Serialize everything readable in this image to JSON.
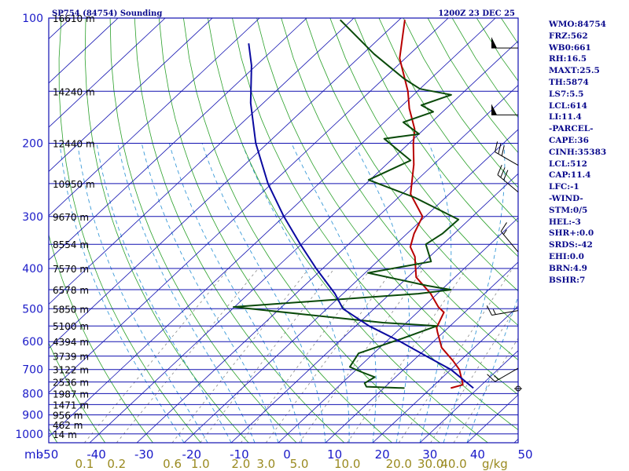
{
  "title": "SP754 (84754) Sounding",
  "time": "1200Z 23 DEC 25",
  "colors": {
    "frame": "#1010b0",
    "isobar": "#1010b0",
    "isotherm": "#1010b0",
    "dry_adiabat": "#2aa02a",
    "moist_adiabat": "#3a9ad8",
    "mixing_ratio": "#888888",
    "temperature": "#b80000",
    "dewpoint": "#0a4a0a",
    "parcel": "#0a0aa0",
    "wind": "#000000"
  },
  "chart_data": {
    "type": "line",
    "subtype": "skew-T log-P sounding",
    "y_scale": "log",
    "ylim": [
      1000,
      100
    ],
    "xlim": [
      -50,
      50
    ],
    "pressure_labels": [
      100,
      200,
      300,
      400,
      500,
      600,
      700,
      800,
      900,
      1000
    ],
    "pressure_unit": "mb",
    "temperature_labels": [
      -50,
      -40,
      -30,
      -20,
      -10,
      0,
      10,
      20,
      30,
      40,
      50
    ],
    "mixing_ratio_labels": [
      "0.1",
      "0.2",
      "0.6",
      "1.0",
      "2.0",
      "3.0",
      "5.0",
      "10.0",
      "20.0",
      "30.0",
      "40.0"
    ],
    "mixing_ratio_unit": "g/kg",
    "heights": [
      {
        "p": 100,
        "label": "16610 m"
      },
      {
        "p": 150,
        "label": "14240 m"
      },
      {
        "p": 200,
        "label": "12440 m"
      },
      {
        "p": 250,
        "label": "10950 m"
      },
      {
        "p": 300,
        "label": "9670 m"
      },
      {
        "p": 350,
        "label": "8554 m"
      },
      {
        "p": 400,
        "label": "7570 m"
      },
      {
        "p": 450,
        "label": "6578 m"
      },
      {
        "p": 500,
        "label": "5850 m"
      },
      {
        "p": 550,
        "label": "5100 m"
      },
      {
        "p": 600,
        "label": "4394 m"
      },
      {
        "p": 650,
        "label": "3739 m"
      },
      {
        "p": 700,
        "label": "3122 m"
      },
      {
        "p": 750,
        "label": "2536 m"
      },
      {
        "p": 800,
        "label": "1987 m"
      },
      {
        "p": 850,
        "label": "1471 m"
      },
      {
        "p": 900,
        "label": "956 m"
      },
      {
        "p": 950,
        "label": "462 m"
      },
      {
        "p": 1000,
        "label": "14 m"
      }
    ],
    "series": [
      {
        "name": "Temperature",
        "points": [
          [
            776,
            24.2
          ],
          [
            762,
            26.0
          ],
          [
            752,
            25.4
          ],
          [
            700,
            21.8
          ],
          [
            668,
            18.6
          ],
          [
            620,
            13.1
          ],
          [
            570,
            8.8
          ],
          [
            555,
            7.5
          ],
          [
            510,
            5.6
          ],
          [
            495,
            3.2
          ],
          [
            460,
            -1.4
          ],
          [
            420,
            -8.2
          ],
          [
            375,
            -13.1
          ],
          [
            355,
            -16.3
          ],
          [
            330,
            -18.5
          ],
          [
            300,
            -20.6
          ],
          [
            265,
            -28.2
          ],
          [
            225,
            -34.2
          ],
          [
            200,
            -39.1
          ],
          [
            185,
            -42.0
          ],
          [
            165,
            -47.8
          ],
          [
            150,
            -52.0
          ],
          [
            125,
            -61.2
          ],
          [
            101,
            -68.8
          ]
        ]
      },
      {
        "name": "Dewpoint",
        "points": [
          [
            776,
            14.4
          ],
          [
            770,
            6.0
          ],
          [
            755,
            4.8
          ],
          [
            730,
            5.6
          ],
          [
            710,
            1.7
          ],
          [
            700,
            -0.2
          ],
          [
            690,
            -2.0
          ],
          [
            640,
            -3.2
          ],
          [
            590,
            2.6
          ],
          [
            550,
            7.2
          ],
          [
            540,
            -5.0
          ],
          [
            495,
            -40.2
          ],
          [
            460,
            -4.0
          ],
          [
            450,
            2.0
          ],
          [
            440,
            -4.0
          ],
          [
            410,
            -19.4
          ],
          [
            385,
            -8.6
          ],
          [
            350,
            -13.6
          ],
          [
            330,
            -12.5
          ],
          [
            305,
            -12.3
          ],
          [
            270,
            -26.6
          ],
          [
            245,
            -40.3
          ],
          [
            220,
            -35.8
          ],
          [
            195,
            -46.3
          ],
          [
            190,
            -40.0
          ],
          [
            178,
            -46.0
          ],
          [
            168,
            -42.0
          ],
          [
            162,
            -46.0
          ],
          [
            153,
            -42.0
          ],
          [
            148,
            -50.0
          ],
          [
            140,
            -55.6
          ],
          [
            122,
            -67.6
          ],
          [
            101,
            -82.5
          ]
        ]
      },
      {
        "name": "Parcel",
        "points": [
          [
            776,
            29.0
          ],
          [
            700,
            20.0
          ],
          [
            650,
            11.8
          ],
          [
            600,
            3.0
          ],
          [
            550,
            -7.2
          ],
          [
            500,
            -16.6
          ],
          [
            460,
            -21.7
          ],
          [
            400,
            -31.4
          ],
          [
            350,
            -40.2
          ],
          [
            300,
            -50.0
          ],
          [
            250,
            -60.8
          ],
          [
            200,
            -72.5
          ],
          [
            160,
            -82.7
          ],
          [
            130,
            -91.0
          ],
          [
            115,
            -96.6
          ]
        ]
      }
    ],
    "wind_barbs": [
      {
        "p": 118,
        "dir": 270,
        "speed": 50
      },
      {
        "p": 171,
        "dir": 270,
        "speed": 50
      },
      {
        "p": 226,
        "dir": 300,
        "speed": 30
      },
      {
        "p": 262,
        "dir": 310,
        "speed": 30
      },
      {
        "p": 365,
        "dir": 320,
        "speed": 15
      },
      {
        "p": 505,
        "dir": 260,
        "speed": 15
      },
      {
        "p": 695,
        "dir": 240,
        "speed": 15
      },
      {
        "p": 778,
        "dir": 0,
        "speed": 0
      }
    ]
  },
  "indices": [
    "WMO:84754",
    "FRZ:562",
    "WB0:661",
    "RH:16.5",
    "MAXT:25.5",
    "TH:5874",
    "LS7:5.5",
    "LCL:614",
    "LI:11.4",
    "-PARCEL-",
    "CAPE:36",
    "CINH:35383",
    "LCL:512",
    "CAP:11.4",
    "LFC:-1",
    "-WIND-",
    "STM:0/5",
    "HEL:-3",
    "SHR+:0.0",
    "SRDS:-42",
    "EHI:0.0",
    "BRN:4.9",
    "BSHR:7"
  ]
}
